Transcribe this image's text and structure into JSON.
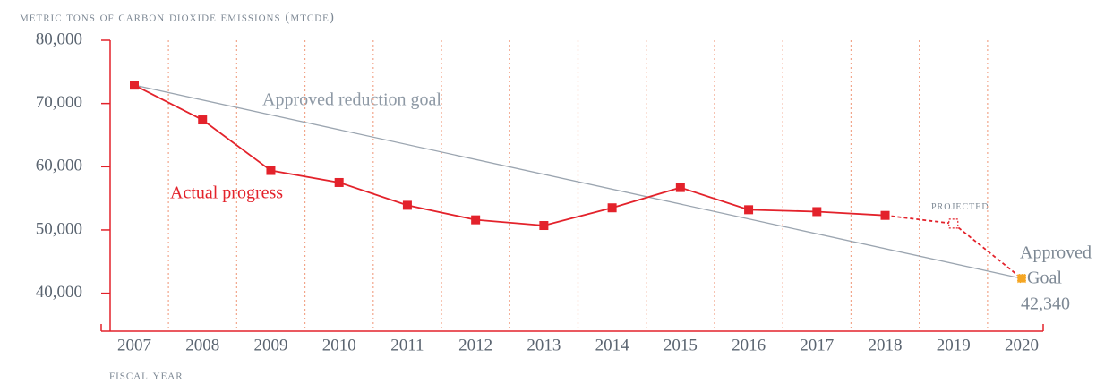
{
  "chart_data": {
    "type": "line",
    "y_axis_label": "metric tons of carbon dioxide emissions (mtcde)",
    "x_axis_label": "fiscal year",
    "categories": [
      "2007",
      "2008",
      "2009",
      "2010",
      "2011",
      "2012",
      "2013",
      "2014",
      "2015",
      "2016",
      "2017",
      "2018",
      "2019",
      "2020"
    ],
    "series": [
      {
        "name": "Actual progress",
        "color": "#e3222b",
        "values": [
          72900,
          67400,
          59400,
          57500,
          53900,
          51600,
          50700,
          53500,
          56700,
          53200,
          52900,
          52300,
          null,
          null
        ]
      },
      {
        "name": "projected",
        "color": "#e3222b",
        "dashed": true,
        "values": [
          null,
          null,
          null,
          null,
          null,
          null,
          null,
          null,
          null,
          null,
          null,
          52300,
          51000,
          42340
        ],
        "value_labels": [
          null,
          null,
          null,
          null,
          null,
          null,
          null,
          null,
          null,
          null,
          null,
          null,
          null,
          "42,340"
        ]
      }
    ],
    "goal_line": {
      "label": "Approved reduction goal",
      "start": 72900,
      "end": 42340,
      "color": "#9ba5b0"
    },
    "goal_marker_color": "#f5a623",
    "annotations": [
      "Approved",
      "Goal"
    ],
    "ylim": [
      34000,
      80000
    ],
    "yticks": [
      {
        "value": 40000,
        "label": "40,000"
      },
      {
        "value": 50000,
        "label": "50,000"
      },
      {
        "value": 60000,
        "label": "60,000"
      },
      {
        "value": 70000,
        "label": "70,000"
      },
      {
        "value": 80000,
        "label": "80,000"
      }
    ]
  }
}
